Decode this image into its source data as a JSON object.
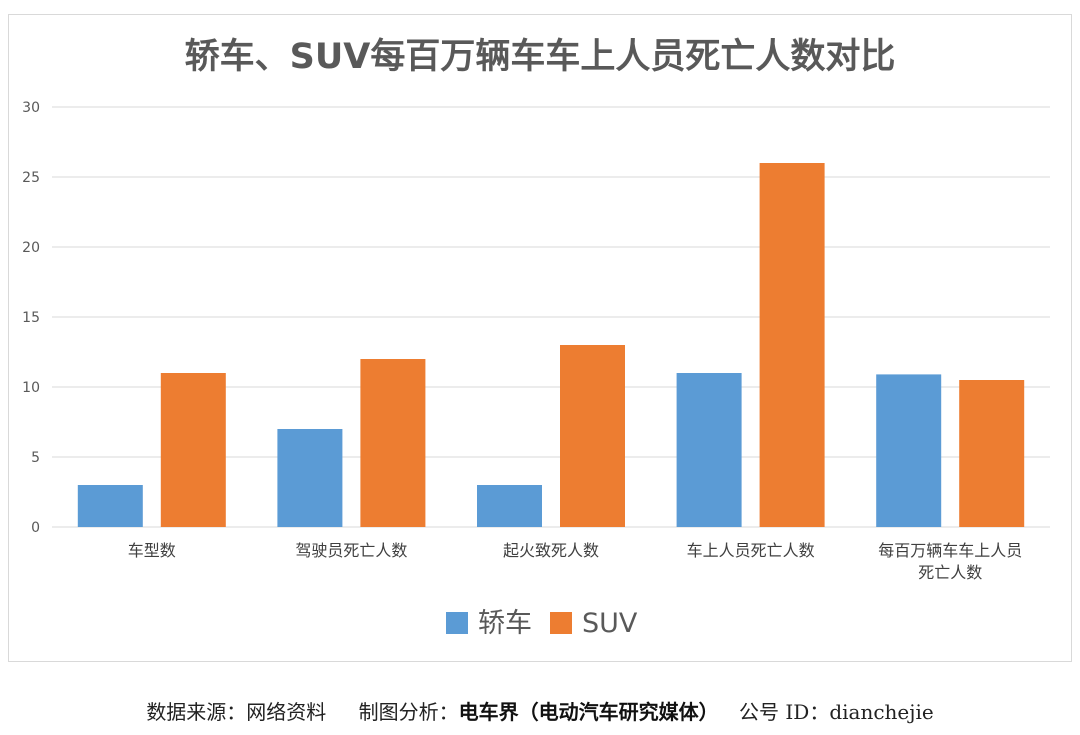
{
  "chart_data": {
    "type": "bar",
    "title": "轿车、SUV每百万辆车车上人员死亡人数对比",
    "categories": [
      "车型数",
      "驾驶员死亡人数",
      "起火致死人数",
      "车上人员死亡人数",
      "每百万辆车车上人员死亡人数"
    ],
    "series": [
      {
        "name": "轿车",
        "values": [
          3,
          7,
          3,
          11,
          10.9
        ],
        "color": "#5b9bd5"
      },
      {
        "name": "SUV",
        "values": [
          11,
          12,
          13,
          26,
          10.5
        ],
        "color": "#ed7d31"
      }
    ],
    "ylim": [
      0,
      30
    ],
    "yticks": [
      0,
      5,
      10,
      15,
      20,
      25,
      30
    ],
    "grid": true,
    "legend": "bottom"
  },
  "footer": {
    "source": "数据来源：网络资料",
    "made_label": "制图分析：",
    "made_by": "电车界（电动汽车研究媒体）",
    "wechat": "公号 ID：dianchejie"
  }
}
